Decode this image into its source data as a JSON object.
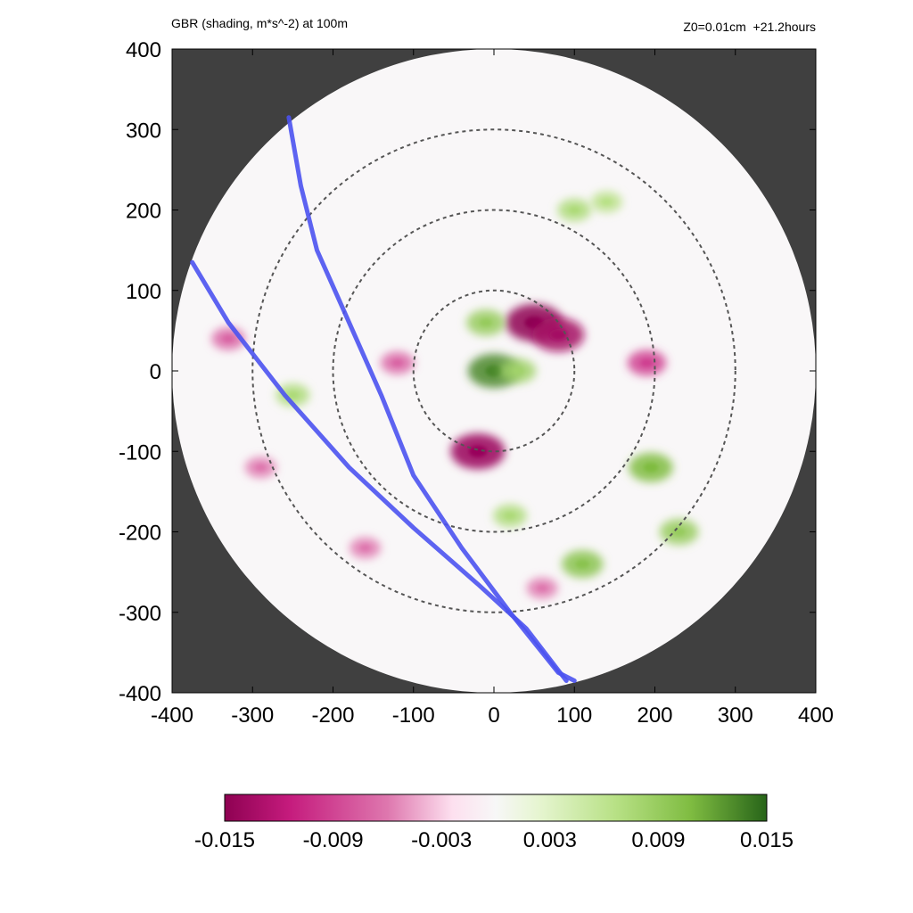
{
  "title_left": "GBR (shading, m*s^-2) at 100m",
  "title_right": "Z0=0.01cm  +21.2hours",
  "colors": {
    "mask": "#404040",
    "ring": "#555555",
    "track": "#4b52f0",
    "neg_max": "#8e0152",
    "pos_max": "#276419"
  },
  "chart_data": {
    "type": "heatmap",
    "title": "GBR (shading, m*s^-2) at 100m",
    "annotation": "Z0=0.01cm  +21.2hours",
    "xlim": [
      -400,
      400
    ],
    "ylim": [
      -400,
      400
    ],
    "x_ticks": [
      "-400",
      "-300",
      "-200",
      "-100",
      "0",
      "100",
      "200",
      "300",
      "400"
    ],
    "y_ticks": [
      "400",
      "300",
      "200",
      "100",
      "0",
      "-100",
      "-200",
      "-300",
      "-400"
    ],
    "domain_radius": 400,
    "range_rings": [
      100,
      200,
      300
    ],
    "colorbar": {
      "min": -0.015,
      "max": 0.015,
      "tick_labels": [
        "-0.015",
        "-0.009",
        "-0.003",
        "0.003",
        "0.009",
        "0.015"
      ]
    },
    "tracks": [
      [
        [
          -255,
          315
        ],
        [
          -240,
          230
        ],
        [
          -220,
          150
        ],
        [
          -180,
          60
        ],
        [
          -140,
          -30
        ],
        [
          -100,
          -130
        ],
        [
          -40,
          -220
        ],
        [
          20,
          -300
        ],
        [
          80,
          -375
        ],
        [
          100,
          -385
        ]
      ],
      [
        [
          -375,
          135
        ],
        [
          -330,
          60
        ],
        [
          -260,
          -30
        ],
        [
          -180,
          -120
        ],
        [
          -100,
          -195
        ],
        [
          -20,
          -265
        ],
        [
          40,
          -320
        ],
        [
          90,
          -385
        ]
      ]
    ],
    "features": [
      {
        "x": 50,
        "y": 60,
        "value": -0.015
      },
      {
        "x": 80,
        "y": 45,
        "value": -0.013
      },
      {
        "x": -20,
        "y": -100,
        "value": -0.014
      },
      {
        "x": 0,
        "y": 0,
        "value": 0.013
      },
      {
        "x": -10,
        "y": 60,
        "value": 0.008
      },
      {
        "x": 30,
        "y": 0,
        "value": 0.007
      },
      {
        "x": 195,
        "y": -120,
        "value": 0.01
      },
      {
        "x": 100,
        "y": 200,
        "value": 0.006
      },
      {
        "x": 190,
        "y": 10,
        "value": -0.008
      },
      {
        "x": -250,
        "y": -30,
        "value": 0.006
      },
      {
        "x": -330,
        "y": 40,
        "value": -0.006
      },
      {
        "x": 110,
        "y": -240,
        "value": 0.009
      },
      {
        "x": 20,
        "y": -180,
        "value": 0.006
      },
      {
        "x": -120,
        "y": 10,
        "value": -0.006
      },
      {
        "x": 140,
        "y": 210,
        "value": 0.005
      },
      {
        "x": 230,
        "y": -200,
        "value": 0.008
      },
      {
        "x": -290,
        "y": -120,
        "value": -0.005
      },
      {
        "x": 60,
        "y": -270,
        "value": -0.005
      },
      {
        "x": -160,
        "y": -220,
        "value": -0.005
      }
    ]
  }
}
